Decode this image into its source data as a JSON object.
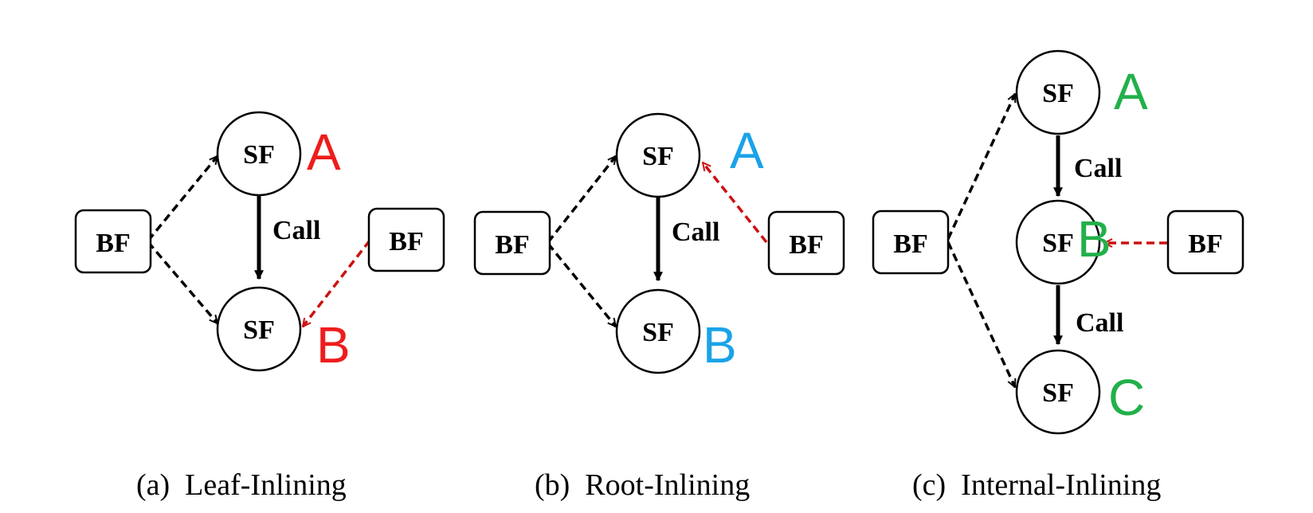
{
  "colors": {
    "a_letters": "#ee1c1c",
    "b_letters": "#1aa3e8",
    "c_letters": "#22b04a",
    "red_arrow": "#cc1111",
    "black": "#000000"
  },
  "labels": {
    "sf": "SF",
    "bf": "BF",
    "call": "Call"
  },
  "panels": [
    {
      "caption": "(a)  Leaf-Inlining",
      "letters": [
        "A",
        "B"
      ]
    },
    {
      "caption": "(b)  Root-Inlining",
      "letters": [
        "A",
        "B"
      ]
    },
    {
      "caption": "(c)  Internal-Inlining",
      "letters": [
        "A",
        "B",
        "C"
      ]
    }
  ]
}
